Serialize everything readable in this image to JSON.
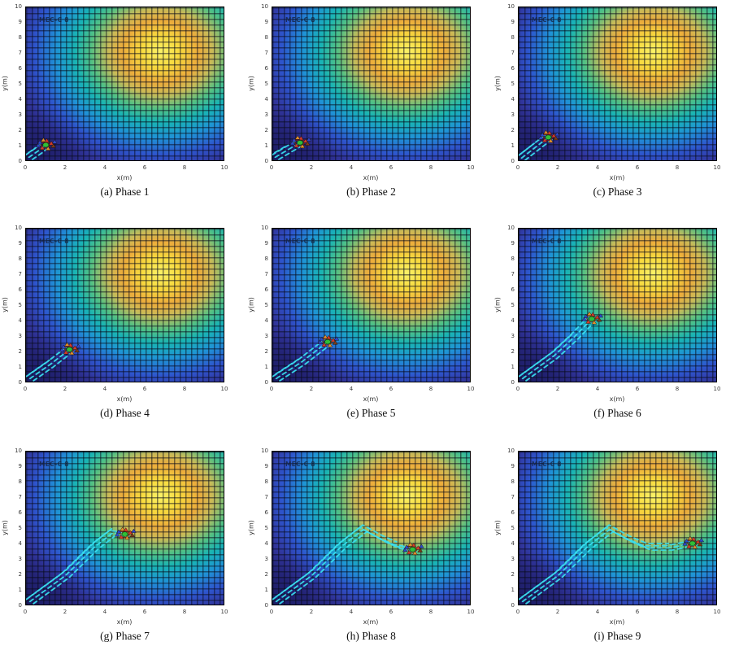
{
  "figure": {
    "overlay_label": "MEC-C 8",
    "colors": {
      "field_low": "#2b2b85",
      "field_mid_teal": "#19b4b4",
      "field_ring_orange": "#ecac3c",
      "field_peak_yellow": "#faf268",
      "grid_line": "#080a19",
      "trajectory_cyan": "#3ae0f0",
      "swarm_green": "#2fbe37",
      "swarm_red": "#d43b2a",
      "swarm_blue": "#2b47cc",
      "swarm_orange": "#e2902c",
      "swarm_brown": "#7a3b16",
      "mesh_dark_red": "#7a1d10"
    },
    "chart_data": {
      "type": "heatmap",
      "colormap": "parula-like (dark blue low to yellow high)",
      "grid": true,
      "xlabel": "x(m)",
      "ylabel": "y(m)",
      "x_range": [
        0,
        10
      ],
      "y_range": [
        0,
        10
      ],
      "x_ticks": [
        "0",
        "2",
        "4",
        "6",
        "8",
        "10"
      ],
      "y_ticks": [
        "0",
        "1",
        "2",
        "3",
        "4",
        "5",
        "6",
        "7",
        "8",
        "9",
        "10"
      ],
      "field_peak_center": [
        6.8,
        7.0
      ],
      "panels": [
        {
          "caption": "(a) Phase 1",
          "swarm_center": [
            1.0,
            1.0
          ],
          "trajectory": [
            [
              0.15,
              0.2
            ],
            [
              0.6,
              0.6
            ],
            [
              1.0,
              1.0
            ]
          ]
        },
        {
          "caption": "(b) Phase 2",
          "swarm_center": [
            1.4,
            1.15
          ],
          "trajectory": [
            [
              0.15,
              0.2
            ],
            [
              0.8,
              0.7
            ],
            [
              1.4,
              1.15
            ]
          ]
        },
        {
          "caption": "(c) Phase 3",
          "swarm_center": [
            1.5,
            1.5
          ],
          "trajectory": [
            [
              0.15,
              0.15
            ],
            [
              0.8,
              0.8
            ],
            [
              1.5,
              1.5
            ]
          ]
        },
        {
          "caption": "(d) Phase 4",
          "swarm_center": [
            2.2,
            2.1
          ],
          "trajectory": [
            [
              0.2,
              0.2
            ],
            [
              1.2,
              1.1
            ],
            [
              2.2,
              2.1
            ]
          ]
        },
        {
          "caption": "(e) Phase 5",
          "swarm_center": [
            2.8,
            2.6
          ],
          "trajectory": [
            [
              0.2,
              0.2
            ],
            [
              1.5,
              1.3
            ],
            [
              2.8,
              2.6
            ]
          ]
        },
        {
          "caption": "(f) Phase 6",
          "swarm_center": [
            3.7,
            4.1
          ],
          "trajectory": [
            [
              0.2,
              0.2
            ],
            [
              1.8,
              1.7
            ],
            [
              2.8,
              2.9
            ],
            [
              3.7,
              4.1
            ]
          ]
        },
        {
          "caption": "(g) Phase 7",
          "swarm_center": [
            5.0,
            4.6
          ],
          "trajectory": [
            [
              0.2,
              0.2
            ],
            [
              2.0,
              1.9
            ],
            [
              3.5,
              3.8
            ],
            [
              4.4,
              4.7
            ],
            [
              5.0,
              4.6
            ]
          ]
        },
        {
          "caption": "(h) Phase 8",
          "swarm_center": [
            7.1,
            3.6
          ],
          "trajectory": [
            [
              0.2,
              0.2
            ],
            [
              2.0,
              1.9
            ],
            [
              3.5,
              3.8
            ],
            [
              4.6,
              4.9
            ],
            [
              5.6,
              4.2
            ],
            [
              6.3,
              3.8
            ],
            [
              7.1,
              3.6
            ]
          ]
        },
        {
          "caption": "(i) Phase 9",
          "swarm_center": [
            8.8,
            4.0
          ],
          "trajectory": [
            [
              0.2,
              0.2
            ],
            [
              2.0,
              1.9
            ],
            [
              3.5,
              3.8
            ],
            [
              4.6,
              4.9
            ],
            [
              5.6,
              4.2
            ],
            [
              6.5,
              3.7
            ],
            [
              7.6,
              3.7
            ],
            [
              8.8,
              4.0
            ]
          ]
        }
      ]
    }
  }
}
